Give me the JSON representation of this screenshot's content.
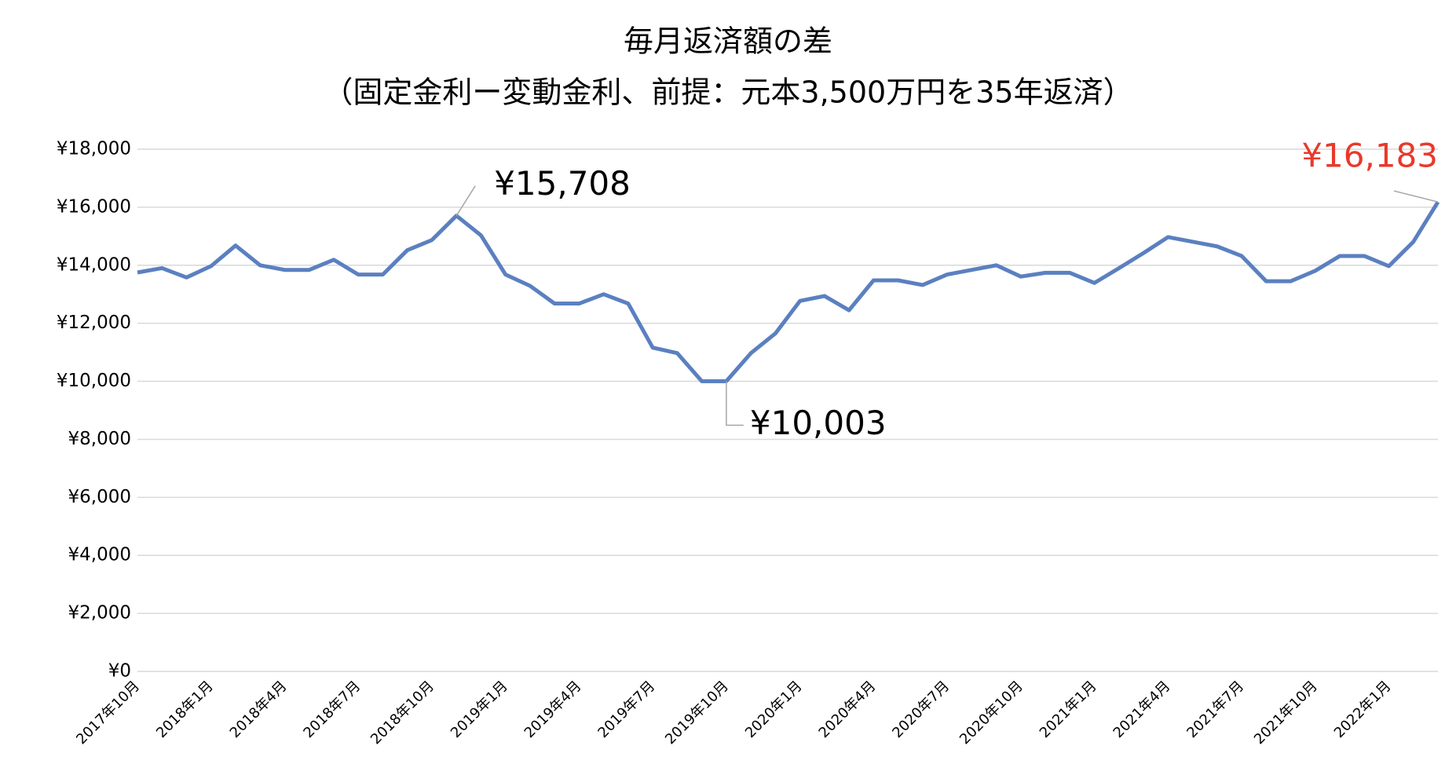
{
  "chart_data": {
    "type": "line",
    "title": [
      "毎月返済額の差",
      "（固定金利ー変動金利、前提：元本3,500万円を35年返済）"
    ],
    "categories": [
      "2017年10月",
      null,
      null,
      "2018年1月",
      null,
      null,
      "2018年4月",
      null,
      null,
      "2018年7月",
      null,
      null,
      "2018年10月",
      null,
      null,
      "2019年1月",
      null,
      null,
      "2019年4月",
      null,
      null,
      "2019年7月",
      null,
      null,
      "2019年10月",
      null,
      null,
      "2020年1月",
      null,
      null,
      "2020年4月",
      null,
      null,
      "2020年7月",
      null,
      null,
      "2020年10月",
      null,
      null,
      "2021年1月",
      null,
      null,
      "2021年4月",
      null,
      null,
      "2021年7月",
      null,
      null,
      "2021年10月",
      null,
      null,
      "2022年1月",
      null,
      null
    ],
    "series": [
      {
        "color": "#5b80c0",
        "values": [
          13750,
          13900,
          13580,
          13970,
          14680,
          14000,
          13840,
          13840,
          14190,
          13680,
          13680,
          14520,
          14870,
          15708,
          15030,
          13680,
          13290,
          12680,
          12680,
          13000,
          12680,
          11160,
          10970,
          10003,
          10003,
          10970,
          11650,
          12770,
          12940,
          12450,
          13480,
          13480,
          13320,
          13680,
          13840,
          14000,
          13610,
          13740,
          13740,
          13390,
          13900,
          14420,
          14970,
          14810,
          14650,
          14320,
          13450,
          13450,
          13810,
          14320,
          14320,
          13970,
          14810,
          16183
        ]
      }
    ],
    "annotations": [
      {
        "index": 13,
        "label": "¥15,708",
        "color": "#000000"
      },
      {
        "index": 24,
        "label": "¥10,003",
        "color": "#000000"
      },
      {
        "index": 53,
        "label": "¥16,183",
        "color": "#e8392b"
      }
    ],
    "ylim": [
      0,
      18000
    ],
    "yticks": [
      {
        "value": 0,
        "label": "¥0"
      },
      {
        "value": 2000,
        "label": "¥2,000"
      },
      {
        "value": 4000,
        "label": "¥4,000"
      },
      {
        "value": 6000,
        "label": "¥6,000"
      },
      {
        "value": 8000,
        "label": "¥8,000"
      },
      {
        "value": 10000,
        "label": "¥10,000"
      },
      {
        "value": 12000,
        "label": "¥12,000"
      },
      {
        "value": 14000,
        "label": "¥14,000"
      },
      {
        "value": 16000,
        "label": "¥16,000"
      },
      {
        "value": 18000,
        "label": "¥18,000"
      }
    ],
    "grid": true
  }
}
